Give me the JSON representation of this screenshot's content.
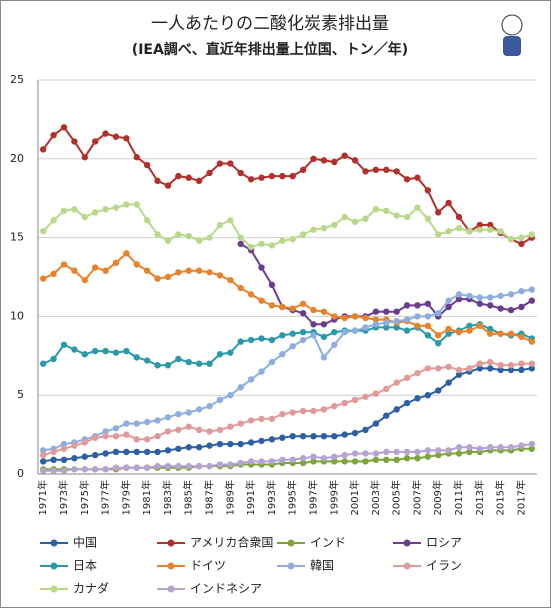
{
  "chart_data": {
    "type": "line",
    "title": "一人あたりの二酸化炭素排出量",
    "subtitle": "(IEA調べ、直近年排出量上位国、トン／年)",
    "categories": [
      "1971年",
      null,
      "1973年",
      null,
      "1975年",
      null,
      "1977年",
      null,
      "1979年",
      null,
      "1981年",
      null,
      "1983年",
      null,
      "1985年",
      null,
      "1987年",
      null,
      "1989年",
      null,
      "1991年",
      null,
      "1993年",
      null,
      "1995年",
      null,
      "1997年",
      null,
      "1999年",
      null,
      "2001年",
      null,
      "2003年",
      null,
      "2005年",
      null,
      "2007年",
      null,
      "2009年",
      null,
      "2011年",
      null,
      "2013年",
      null,
      "2015年",
      null,
      "2017年",
      null
    ],
    "ylim": [
      0,
      25
    ],
    "yticks": [
      0,
      5,
      10,
      15,
      20,
      25
    ],
    "grid": true,
    "series": [
      {
        "name": "中国",
        "color": "#2e5fa3",
        "values": [
          0.8,
          0.9,
          0.9,
          1.0,
          1.1,
          1.2,
          1.3,
          1.4,
          1.4,
          1.4,
          1.4,
          1.4,
          1.5,
          1.6,
          1.7,
          1.7,
          1.8,
          1.9,
          1.9,
          1.9,
          2.0,
          2.1,
          2.2,
          2.3,
          2.4,
          2.4,
          2.4,
          2.4,
          2.4,
          2.5,
          2.6,
          2.8,
          3.2,
          3.7,
          4.1,
          4.5,
          4.8,
          5.0,
          5.3,
          5.8,
          6.3,
          6.5,
          6.7,
          6.7,
          6.6,
          6.6,
          6.6,
          6.7
        ]
      },
      {
        "name": "アメリカ合衆国",
        "color": "#b0302b",
        "values": [
          20.6,
          21.5,
          22.0,
          21.1,
          20.1,
          21.1,
          21.6,
          21.4,
          21.3,
          20.1,
          19.6,
          18.6,
          18.3,
          18.9,
          18.8,
          18.6,
          19.1,
          19.7,
          19.7,
          19.1,
          18.7,
          18.8,
          18.9,
          18.9,
          18.9,
          19.3,
          20.0,
          19.9,
          19.8,
          20.2,
          19.9,
          19.2,
          19.3,
          19.3,
          19.2,
          18.7,
          18.8,
          18.0,
          16.6,
          17.2,
          16.3,
          15.4,
          15.8,
          15.8,
          15.3,
          14.9,
          14.6,
          15.0
        ]
      },
      {
        "name": "インド",
        "color": "#7ea43a",
        "values": [
          0.3,
          0.3,
          0.3,
          0.3,
          0.3,
          0.3,
          0.3,
          0.3,
          0.4,
          0.4,
          0.4,
          0.4,
          0.4,
          0.4,
          0.4,
          0.5,
          0.5,
          0.5,
          0.5,
          0.6,
          0.6,
          0.6,
          0.6,
          0.7,
          0.7,
          0.7,
          0.8,
          0.8,
          0.8,
          0.8,
          0.8,
          0.8,
          0.9,
          0.9,
          0.9,
          1.0,
          1.0,
          1.1,
          1.2,
          1.3,
          1.3,
          1.4,
          1.4,
          1.5,
          1.5,
          1.5,
          1.6,
          1.6
        ]
      },
      {
        "name": "ロシア",
        "color": "#6b3d8f",
        "values": [
          null,
          null,
          null,
          null,
          null,
          null,
          null,
          null,
          null,
          null,
          null,
          null,
          null,
          null,
          null,
          null,
          null,
          null,
          null,
          14.6,
          14.2,
          13.1,
          12.0,
          10.6,
          10.4,
          10.2,
          9.5,
          9.5,
          9.8,
          10.0,
          10.0,
          10.0,
          10.3,
          10.3,
          10.3,
          10.7,
          10.7,
          10.8,
          10.0,
          10.6,
          11.1,
          11.1,
          10.8,
          10.7,
          10.5,
          10.4,
          10.6,
          11.0
        ]
      },
      {
        "name": "日本",
        "color": "#2a9aa8",
        "values": [
          7.0,
          7.3,
          8.2,
          7.9,
          7.6,
          7.8,
          7.8,
          7.7,
          7.8,
          7.4,
          7.2,
          6.9,
          6.9,
          7.3,
          7.1,
          7.0,
          7.0,
          7.6,
          7.7,
          8.4,
          8.5,
          8.6,
          8.5,
          8.8,
          8.9,
          9.0,
          9.0,
          8.7,
          9.0,
          9.1,
          9.1,
          9.1,
          9.3,
          9.3,
          9.3,
          9.1,
          9.3,
          8.8,
          8.3,
          8.9,
          9.1,
          9.4,
          9.5,
          9.2,
          8.9,
          8.8,
          8.9,
          8.6
        ]
      },
      {
        "name": "ドイツ",
        "color": "#e8832b",
        "values": [
          12.4,
          12.7,
          13.3,
          12.9,
          12.3,
          13.1,
          12.9,
          13.4,
          14.0,
          13.3,
          12.9,
          12.4,
          12.5,
          12.8,
          12.9,
          12.9,
          12.8,
          12.6,
          12.3,
          11.8,
          11.4,
          11.0,
          10.7,
          10.6,
          10.5,
          10.8,
          10.4,
          10.3,
          10.0,
          9.9,
          10.0,
          9.9,
          9.8,
          9.8,
          9.6,
          9.7,
          9.4,
          9.4,
          8.8,
          9.2,
          9.0,
          9.1,
          9.4,
          8.9,
          8.9,
          8.9,
          8.7,
          8.4
        ]
      },
      {
        "name": "韓国",
        "color": "#8faee0",
        "values": [
          1.5,
          1.6,
          1.9,
          2.0,
          2.2,
          2.4,
          2.7,
          2.9,
          3.2,
          3.2,
          3.3,
          3.4,
          3.6,
          3.8,
          3.9,
          4.1,
          4.3,
          4.7,
          5.0,
          5.5,
          6.0,
          6.5,
          7.1,
          7.6,
          8.1,
          8.5,
          8.8,
          7.4,
          8.2,
          9.0,
          9.1,
          9.3,
          9.5,
          9.6,
          9.7,
          9.8,
          10.0,
          10.0,
          10.2,
          11.0,
          11.4,
          11.3,
          11.2,
          11.2,
          11.3,
          11.4,
          11.6,
          11.7
        ]
      },
      {
        "name": "イラン",
        "color": "#e09a9a",
        "values": [
          1.2,
          1.4,
          1.6,
          1.8,
          2.0,
          2.3,
          2.4,
          2.4,
          2.5,
          2.2,
          2.2,
          2.4,
          2.7,
          2.8,
          3.0,
          2.8,
          2.7,
          2.8,
          3.0,
          3.2,
          3.4,
          3.5,
          3.5,
          3.8,
          3.9,
          4.0,
          4.0,
          4.1,
          4.3,
          4.5,
          4.7,
          4.9,
          5.1,
          5.4,
          5.8,
          6.1,
          6.4,
          6.7,
          6.7,
          6.8,
          6.6,
          6.7,
          7.0,
          7.1,
          6.9,
          6.9,
          7.0,
          7.0
        ]
      },
      {
        "name": "カナダ",
        "color": "#b8d98a",
        "values": [
          15.4,
          16.1,
          16.7,
          16.8,
          16.3,
          16.6,
          16.8,
          16.9,
          17.1,
          17.1,
          16.1,
          15.2,
          14.8,
          15.2,
          15.1,
          14.8,
          15.0,
          15.8,
          16.1,
          15.0,
          14.4,
          14.6,
          14.5,
          14.8,
          14.9,
          15.2,
          15.5,
          15.6,
          15.8,
          16.3,
          16.0,
          16.2,
          16.8,
          16.7,
          16.4,
          16.3,
          16.9,
          16.2,
          15.2,
          15.4,
          15.6,
          15.4,
          15.5,
          15.5,
          15.4,
          14.9,
          15.0,
          15.2
        ]
      },
      {
        "name": "インドネシア",
        "color": "#b4a3d3",
        "values": [
          0.2,
          0.2,
          0.2,
          0.3,
          0.3,
          0.3,
          0.3,
          0.4,
          0.4,
          0.4,
          0.4,
          0.5,
          0.5,
          0.5,
          0.5,
          0.5,
          0.5,
          0.6,
          0.6,
          0.7,
          0.8,
          0.8,
          0.8,
          0.9,
          0.9,
          1.0,
          1.1,
          1.0,
          1.1,
          1.2,
          1.3,
          1.3,
          1.3,
          1.4,
          1.4,
          1.4,
          1.4,
          1.5,
          1.5,
          1.5,
          1.7,
          1.7,
          1.6,
          1.7,
          1.7,
          1.7,
          1.8,
          1.9
        ]
      }
    ]
  }
}
